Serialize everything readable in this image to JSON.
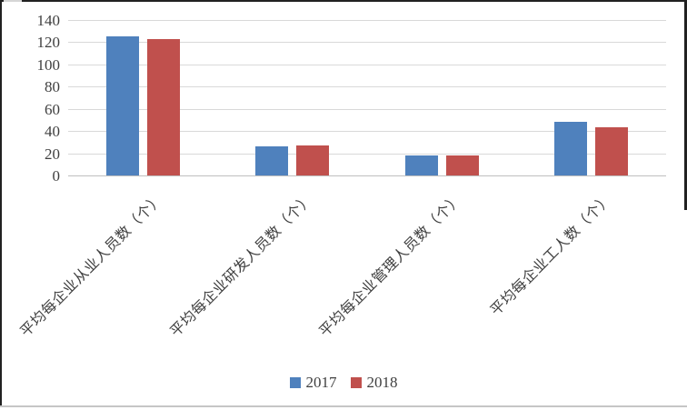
{
  "chart_data": {
    "type": "bar",
    "title": "",
    "xlabel": "",
    "ylabel": "",
    "categories": [
      "平均每企业从业人员数（个）",
      "平均每企业研发人员数（个）",
      "平均每企业管理人员数（个）",
      "平均每企业工人数（个）"
    ],
    "series": [
      {
        "name": "2017",
        "color": "#4F81BD",
        "values": [
          125,
          26,
          18,
          48
        ]
      },
      {
        "name": "2018",
        "color": "#C0504D",
        "values": [
          123,
          27,
          18,
          43
        ]
      }
    ],
    "ylim": [
      0,
      140
    ],
    "yticks": [
      0,
      20,
      40,
      60,
      80,
      100,
      120,
      140
    ],
    "grid": "horizontal",
    "legend_position": "bottom-center",
    "gridline_color": "#D9D9D9",
    "axis_line_color": "#BFBFBF",
    "label_color": "#3F3F3F"
  }
}
